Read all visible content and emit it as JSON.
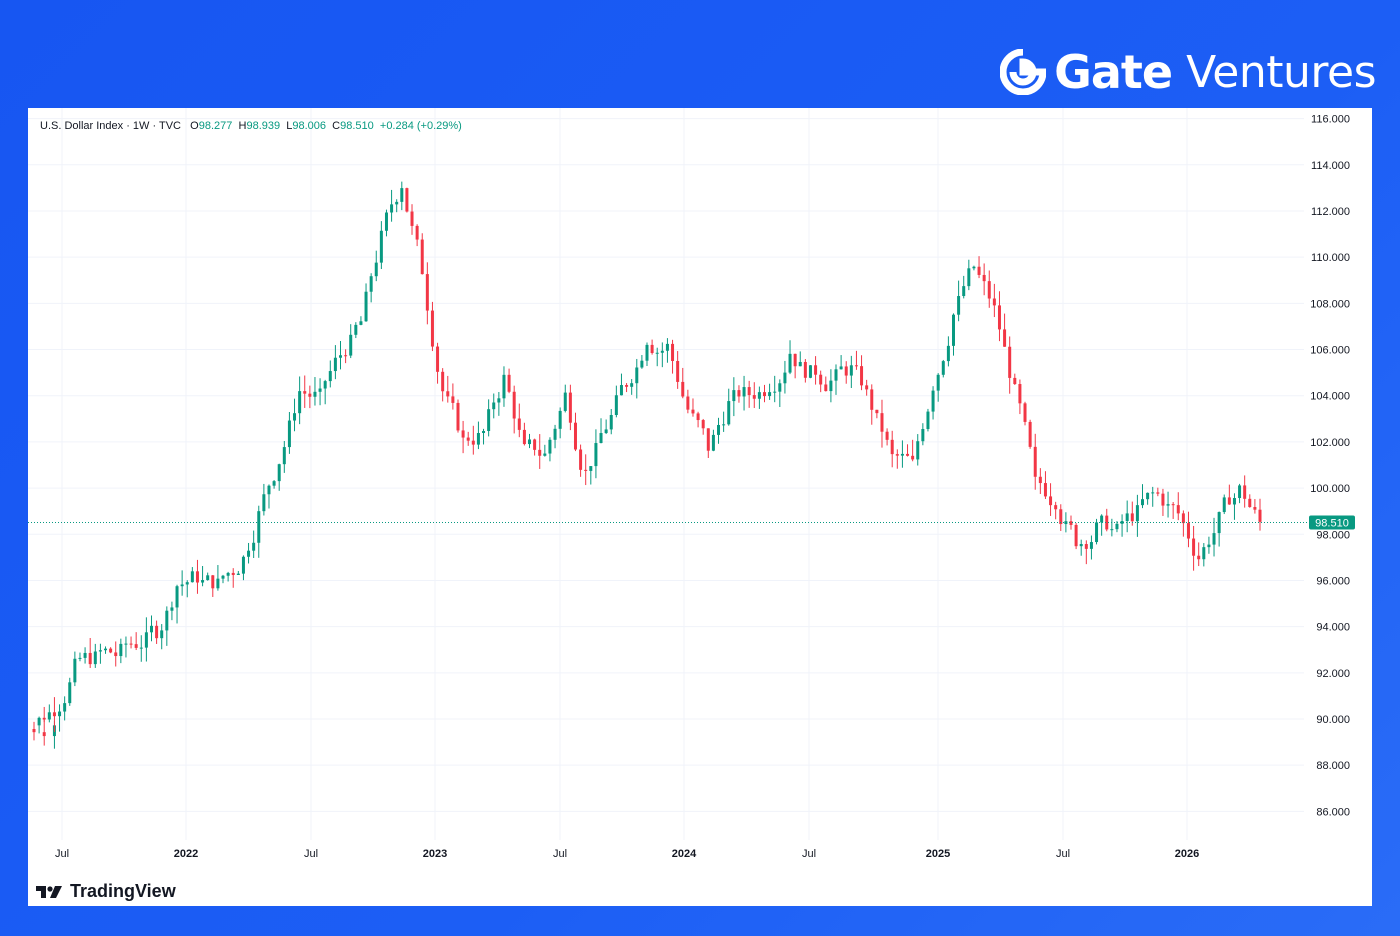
{
  "brand": {
    "name_bold": "Gate",
    "name_light": "Ventures"
  },
  "legend": {
    "symbol": "U.S. Dollar Index · 1W · TVC",
    "o_label": "O",
    "o_value": "98.277",
    "h_label": "H",
    "h_value": "98.939",
    "l_label": "L",
    "l_value": "98.006",
    "c_label": "C",
    "c_value": "98.510",
    "change": "+0.284 (+0.29%)"
  },
  "footer": {
    "tradingview_label": "TradingView"
  },
  "colors": {
    "up": "#089981",
    "down": "#f23645",
    "grid": "#f0f3fa",
    "last_line": "#089981"
  },
  "chart_data": {
    "type": "candlestick",
    "ylim": [
      84.5,
      116.2
    ],
    "y_ticks": [
      "116.000",
      "114.000",
      "112.000",
      "110.000",
      "108.000",
      "106.000",
      "104.000",
      "102.000",
      "100.000",
      "98.000",
      "96.000",
      "94.000",
      "92.000",
      "90.000",
      "88.000",
      "86.000"
    ],
    "x_ticks": [
      "Jul",
      "2022",
      "Jul",
      "2023",
      "Jul",
      "2024",
      "Jul",
      "2025",
      "Jul",
      "2026"
    ],
    "last_value": 98.51,
    "last_label": "98.510",
    "series": [
      {
        "date": "2021-05",
        "close": 89.8
      },
      {
        "date": "2021-06",
        "close": 90.5
      },
      {
        "date": "2021-06",
        "close": 92.2
      },
      {
        "date": "2021-07",
        "close": 92.6
      },
      {
        "date": "2021-08",
        "close": 92.8
      },
      {
        "date": "2021-09",
        "close": 93.3
      },
      {
        "date": "2021-10",
        "close": 93.9
      },
      {
        "date": "2021-11",
        "close": 95.8
      },
      {
        "date": "2021-12",
        "close": 96.2
      },
      {
        "date": "2022-01",
        "close": 95.8
      },
      {
        "date": "2022-02",
        "close": 96.6
      },
      {
        "date": "2022-03",
        "close": 98.8
      },
      {
        "date": "2022-04",
        "close": 101.2
      },
      {
        "date": "2022-05",
        "close": 104.2
      },
      {
        "date": "2022-06",
        "close": 103.9
      },
      {
        "date": "2022-07",
        "close": 105.8
      },
      {
        "date": "2022-08",
        "close": 107.2
      },
      {
        "date": "2022-09",
        "close": 110.8
      },
      {
        "date": "2022-10",
        "close": 113.2
      },
      {
        "date": "2022-11",
        "close": 109.5
      },
      {
        "date": "2022-12",
        "close": 104.2
      },
      {
        "date": "2023-01",
        "close": 102.0
      },
      {
        "date": "2023-02",
        "close": 102.4
      },
      {
        "date": "2023-03",
        "close": 104.7
      },
      {
        "date": "2023-04",
        "close": 101.6
      },
      {
        "date": "2023-05",
        "close": 101.4
      },
      {
        "date": "2023-06",
        "close": 104.0
      },
      {
        "date": "2023-07",
        "close": 100.6
      },
      {
        "date": "2023-08",
        "close": 102.7
      },
      {
        "date": "2023-09",
        "close": 104.6
      },
      {
        "date": "2023-10",
        "close": 106.5
      },
      {
        "date": "2023-11",
        "close": 106.1
      },
      {
        "date": "2023-12",
        "close": 103.4
      },
      {
        "date": "2024-01",
        "close": 101.8
      },
      {
        "date": "2024-02",
        "close": 103.6
      },
      {
        "date": "2024-03",
        "close": 104.1
      },
      {
        "date": "2024-04",
        "close": 104.5
      },
      {
        "date": "2024-05",
        "close": 105.9
      },
      {
        "date": "2024-06",
        "close": 104.9
      },
      {
        "date": "2024-07",
        "close": 104.6
      },
      {
        "date": "2024-08",
        "close": 105.1
      },
      {
        "date": "2024-09",
        "close": 103.6
      },
      {
        "date": "2024-10",
        "close": 101.3
      },
      {
        "date": "2024-11",
        "close": 101.0
      },
      {
        "date": "2024-12",
        "close": 104.5
      },
      {
        "date": "2025-01",
        "close": 107.5
      },
      {
        "date": "2025-02",
        "close": 109.6
      },
      {
        "date": "2025-03",
        "close": 107.7
      },
      {
        "date": "2025-04",
        "close": 104.1
      },
      {
        "date": "2025-05",
        "close": 100.2
      },
      {
        "date": "2025-06",
        "close": 99.5
      },
      {
        "date": "2025-07",
        "close": 97.8
      },
      {
        "date": "2025-08",
        "close": 98.2
      },
      {
        "date": "2025-09",
        "close": 98.1
      },
      {
        "date": "2025-10",
        "close": 98.9
      },
      {
        "date": "2025-11",
        "close": 99.7
      },
      {
        "date": "2025-12",
        "close": 98.9
      },
      {
        "date": "2026-01",
        "close": 97.0
      },
      {
        "date": "2026-02",
        "close": 98.6
      },
      {
        "date": "2026-03",
        "close": 99.9
      },
      {
        "date": "2026-04",
        "close": 98.5
      }
    ]
  }
}
